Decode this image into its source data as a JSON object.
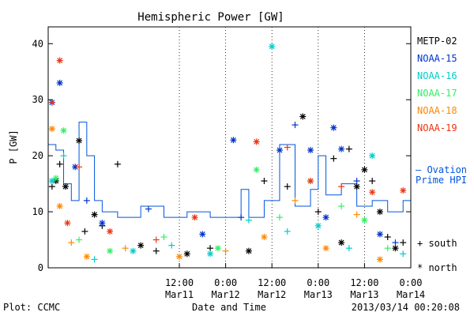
{
  "chart_data": {
    "type": "scatter",
    "title": "Hemispheric Power [GW]",
    "xlabel": "Date and Time",
    "ylabel": "P [GW]",
    "ylim": [
      0,
      43
    ],
    "xlim": [
      "2013-03-10 02:00",
      "2013-03-14 00:00"
    ],
    "yticks": [
      "0",
      "10",
      "20",
      "30",
      "40"
    ],
    "xticks": [
      {
        "x": "2013-03-11 12:00",
        "time": "12:00",
        "date": "Mar11"
      },
      {
        "x": "2013-03-12 00:00",
        "time": "0:00",
        "date": "Mar12"
      },
      {
        "x": "2013-03-12 12:00",
        "time": "12:00",
        "date": "Mar12"
      },
      {
        "x": "2013-03-13 00:00",
        "time": "0:00",
        "date": "Mar13"
      },
      {
        "x": "2013-03-13 12:00",
        "time": "12:00",
        "date": "Mar13"
      },
      {
        "x": "2013-03-14 00:00",
        "time": "0:00",
        "date": "Mar14"
      }
    ],
    "grid": "dotted vertical at 12-hour ticks",
    "marker_legend": {
      "south": "+ south",
      "north": "* north"
    },
    "series": [
      {
        "name": "METP-02",
        "color": "#000000",
        "points": [
          {
            "x": "2013-03-10 03:00",
            "y": 14.5,
            "m": "+"
          },
          {
            "x": "2013-03-10 04:00",
            "y": 15.5,
            "m": "*"
          },
          {
            "x": "2013-03-10 05:00",
            "y": 18.5,
            "m": "+"
          },
          {
            "x": "2013-03-10 06:30",
            "y": 14.5,
            "m": "*"
          },
          {
            "x": "2013-03-10 10:00",
            "y": 22.7,
            "m": "*"
          },
          {
            "x": "2013-03-10 11:30",
            "y": 6.5,
            "m": "+"
          },
          {
            "x": "2013-03-10 14:00",
            "y": 9.5,
            "m": "*"
          },
          {
            "x": "2013-03-10 16:00",
            "y": 7.5,
            "m": "+"
          },
          {
            "x": "2013-03-10 20:00",
            "y": 18.5,
            "m": "+"
          },
          {
            "x": "2013-03-11 02:00",
            "y": 4.0,
            "m": "*"
          },
          {
            "x": "2013-03-11 06:00",
            "y": 3.0,
            "m": "+"
          },
          {
            "x": "2013-03-11 14:00",
            "y": 2.5,
            "m": "*"
          },
          {
            "x": "2013-03-11 20:00",
            "y": 3.5,
            "m": "+"
          },
          {
            "x": "2013-03-12 06:00",
            "y": 3.0,
            "m": "*"
          },
          {
            "x": "2013-03-12 10:00",
            "y": 15.5,
            "m": "+"
          },
          {
            "x": "2013-03-12 16:00",
            "y": 14.5,
            "m": "+"
          },
          {
            "x": "2013-03-12 20:00",
            "y": 27.0,
            "m": "*"
          },
          {
            "x": "2013-03-13 00:00",
            "y": 10.0,
            "m": "+"
          },
          {
            "x": "2013-03-13 04:00",
            "y": 19.5,
            "m": "+"
          },
          {
            "x": "2013-03-13 06:00",
            "y": 4.5,
            "m": "*"
          },
          {
            "x": "2013-03-13 08:00",
            "y": 21.2,
            "m": "+"
          },
          {
            "x": "2013-03-13 10:00",
            "y": 14.5,
            "m": "*"
          },
          {
            "x": "2013-03-13 12:00",
            "y": 17.5,
            "m": "*"
          },
          {
            "x": "2013-03-13 14:00",
            "y": 15.5,
            "m": "+"
          },
          {
            "x": "2013-03-13 16:00",
            "y": 10.0,
            "m": "*"
          },
          {
            "x": "2013-03-13 18:00",
            "y": 5.5,
            "m": "+"
          },
          {
            "x": "2013-03-13 20:00",
            "y": 3.5,
            "m": "*"
          },
          {
            "x": "2013-03-13 22:00",
            "y": 4.5,
            "m": "+"
          }
        ]
      },
      {
        "name": "NOAA-15",
        "color": "#0033cc",
        "points": [
          {
            "x": "2013-03-10 03:00",
            "y": 29.5,
            "m": "*"
          },
          {
            "x": "2013-03-10 05:00",
            "y": 33.0,
            "m": "*"
          },
          {
            "x": "2013-03-10 09:00",
            "y": 18.0,
            "m": "*"
          },
          {
            "x": "2013-03-10 12:00",
            "y": 12.0,
            "m": "+"
          },
          {
            "x": "2013-03-10 16:00",
            "y": 8.0,
            "m": "*"
          },
          {
            "x": "2013-03-11 04:00",
            "y": 10.5,
            "m": "+"
          },
          {
            "x": "2013-03-11 18:00",
            "y": 6.0,
            "m": "*"
          },
          {
            "x": "2013-03-12 02:00",
            "y": 22.8,
            "m": "*"
          },
          {
            "x": "2013-03-12 04:00",
            "y": 9.0,
            "m": "+"
          },
          {
            "x": "2013-03-12 14:00",
            "y": 21.0,
            "m": "*"
          },
          {
            "x": "2013-03-12 18:00",
            "y": 25.5,
            "m": "+"
          },
          {
            "x": "2013-03-12 22:00",
            "y": 21.0,
            "m": "*"
          },
          {
            "x": "2013-03-13 02:00",
            "y": 9.0,
            "m": "*"
          },
          {
            "x": "2013-03-13 04:00",
            "y": 25.0,
            "m": "*"
          },
          {
            "x": "2013-03-13 06:00",
            "y": 21.2,
            "m": "*"
          },
          {
            "x": "2013-03-13 10:00",
            "y": 15.5,
            "m": "+"
          },
          {
            "x": "2013-03-13 16:00",
            "y": 6.0,
            "m": "*"
          },
          {
            "x": "2013-03-13 20:00",
            "y": 4.5,
            "m": "+"
          }
        ]
      },
      {
        "name": "NOAA-16",
        "color": "#00cccc",
        "points": [
          {
            "x": "2013-03-10 03:00",
            "y": 15.5,
            "m": "*"
          },
          {
            "x": "2013-03-10 06:00",
            "y": 20.0,
            "m": "+"
          },
          {
            "x": "2013-03-10 14:00",
            "y": 1.5,
            "m": "+"
          },
          {
            "x": "2013-03-11 00:00",
            "y": 3.0,
            "m": "*"
          },
          {
            "x": "2013-03-11 10:00",
            "y": 4.0,
            "m": "+"
          },
          {
            "x": "2013-03-11 20:00",
            "y": 2.5,
            "m": "*"
          },
          {
            "x": "2013-03-12 06:00",
            "y": 8.5,
            "m": "+"
          },
          {
            "x": "2013-03-12 12:00",
            "y": 39.5,
            "m": "*"
          },
          {
            "x": "2013-03-12 16:00",
            "y": 6.5,
            "m": "+"
          },
          {
            "x": "2013-03-13 00:00",
            "y": 7.5,
            "m": "*"
          },
          {
            "x": "2013-03-13 08:00",
            "y": 3.5,
            "m": "+"
          },
          {
            "x": "2013-03-13 14:00",
            "y": 20.0,
            "m": "*"
          },
          {
            "x": "2013-03-13 22:00",
            "y": 2.5,
            "m": "+"
          }
        ]
      },
      {
        "name": "NOAA-17",
        "color": "#33ee66",
        "points": [
          {
            "x": "2013-03-10 04:00",
            "y": 16.0,
            "m": "*"
          },
          {
            "x": "2013-03-10 06:00",
            "y": 24.5,
            "m": "*"
          },
          {
            "x": "2013-03-10 10:00",
            "y": 5.0,
            "m": "+"
          },
          {
            "x": "2013-03-10 18:00",
            "y": 3.0,
            "m": "*"
          },
          {
            "x": "2013-03-11 08:00",
            "y": 5.5,
            "m": "+"
          },
          {
            "x": "2013-03-11 22:00",
            "y": 3.5,
            "m": "*"
          },
          {
            "x": "2013-03-12 08:00",
            "y": 17.5,
            "m": "*"
          },
          {
            "x": "2013-03-12 14:00",
            "y": 9.0,
            "m": "+"
          },
          {
            "x": "2013-03-12 22:00",
            "y": 15.5,
            "m": "*"
          },
          {
            "x": "2013-03-13 06:00",
            "y": 11.0,
            "m": "+"
          },
          {
            "x": "2013-03-13 12:00",
            "y": 8.5,
            "m": "*"
          },
          {
            "x": "2013-03-13 18:00",
            "y": 3.5,
            "m": "+"
          }
        ]
      },
      {
        "name": "NOAA-18",
        "color": "#ff8800",
        "points": [
          {
            "x": "2013-03-10 03:00",
            "y": 24.8,
            "m": "*"
          },
          {
            "x": "2013-03-10 05:00",
            "y": 11.0,
            "m": "*"
          },
          {
            "x": "2013-03-10 08:00",
            "y": 4.5,
            "m": "+"
          },
          {
            "x": "2013-03-10 12:00",
            "y": 2.0,
            "m": "*"
          },
          {
            "x": "2013-03-10 22:00",
            "y": 3.5,
            "m": "+"
          },
          {
            "x": "2013-03-11 12:00",
            "y": 2.0,
            "m": "*"
          },
          {
            "x": "2013-03-12 00:00",
            "y": 3.0,
            "m": "+"
          },
          {
            "x": "2013-03-12 10:00",
            "y": 5.5,
            "m": "*"
          },
          {
            "x": "2013-03-12 18:00",
            "y": 12.0,
            "m": "+"
          },
          {
            "x": "2013-03-13 02:00",
            "y": 3.5,
            "m": "*"
          },
          {
            "x": "2013-03-13 10:00",
            "y": 9.5,
            "m": "+"
          },
          {
            "x": "2013-03-13 16:00",
            "y": 1.5,
            "m": "*"
          }
        ]
      },
      {
        "name": "NOAA-19",
        "color": "#ee3311",
        "points": [
          {
            "x": "2013-03-10 03:00",
            "y": 29.5,
            "m": "+"
          },
          {
            "x": "2013-03-10 05:00",
            "y": 37.0,
            "m": "*"
          },
          {
            "x": "2013-03-10 07:00",
            "y": 8.0,
            "m": "*"
          },
          {
            "x": "2013-03-10 10:00",
            "y": 18.0,
            "m": "+"
          },
          {
            "x": "2013-03-10 18:00",
            "y": 6.5,
            "m": "*"
          },
          {
            "x": "2013-03-11 06:00",
            "y": 5.0,
            "m": "+"
          },
          {
            "x": "2013-03-11 16:00",
            "y": 9.0,
            "m": "*"
          },
          {
            "x": "2013-03-12 08:00",
            "y": 22.5,
            "m": "*"
          },
          {
            "x": "2013-03-12 16:00",
            "y": 21.5,
            "m": "+"
          },
          {
            "x": "2013-03-12 22:00",
            "y": 15.5,
            "m": "*"
          },
          {
            "x": "2013-03-13 06:00",
            "y": 14.5,
            "m": "+"
          },
          {
            "x": "2013-03-13 14:00",
            "y": 13.5,
            "m": "*"
          },
          {
            "x": "2013-03-13 22:00",
            "y": 13.8,
            "m": "*"
          }
        ]
      }
    ],
    "ovation": {
      "name": "Ovation Prime HPI",
      "color": "#0055dd",
      "label_lines": [
        "— Ovation",
        "Prime HPI"
      ],
      "points": [
        [
          "2013-03-10 02:00",
          22
        ],
        [
          "2013-03-10 04:00",
          21
        ],
        [
          "2013-03-10 06:00",
          15
        ],
        [
          "2013-03-10 08:00",
          12
        ],
        [
          "2013-03-10 10:00",
          26
        ],
        [
          "2013-03-10 12:00",
          20
        ],
        [
          "2013-03-10 14:00",
          12
        ],
        [
          "2013-03-10 16:00",
          10
        ],
        [
          "2013-03-10 20:00",
          9
        ],
        [
          "2013-03-11 02:00",
          11
        ],
        [
          "2013-03-11 08:00",
          9
        ],
        [
          "2013-03-11 14:00",
          10
        ],
        [
          "2013-03-11 20:00",
          9
        ],
        [
          "2013-03-12 04:00",
          14
        ],
        [
          "2013-03-12 06:00",
          9
        ],
        [
          "2013-03-12 10:00",
          12
        ],
        [
          "2013-03-12 14:00",
          22
        ],
        [
          "2013-03-12 18:00",
          11
        ],
        [
          "2013-03-12 22:00",
          14
        ],
        [
          "2013-03-13 00:00",
          20
        ],
        [
          "2013-03-13 02:00",
          13
        ],
        [
          "2013-03-13 06:00",
          15
        ],
        [
          "2013-03-13 10:00",
          11
        ],
        [
          "2013-03-13 14:00",
          12
        ],
        [
          "2013-03-13 18:00",
          10
        ],
        [
          "2013-03-13 22:00",
          12
        ],
        [
          "2013-03-14 00:00",
          10
        ]
      ]
    }
  },
  "footer": {
    "left": "Plot: CCMC",
    "right": "2013/03/14 00:20:08"
  }
}
